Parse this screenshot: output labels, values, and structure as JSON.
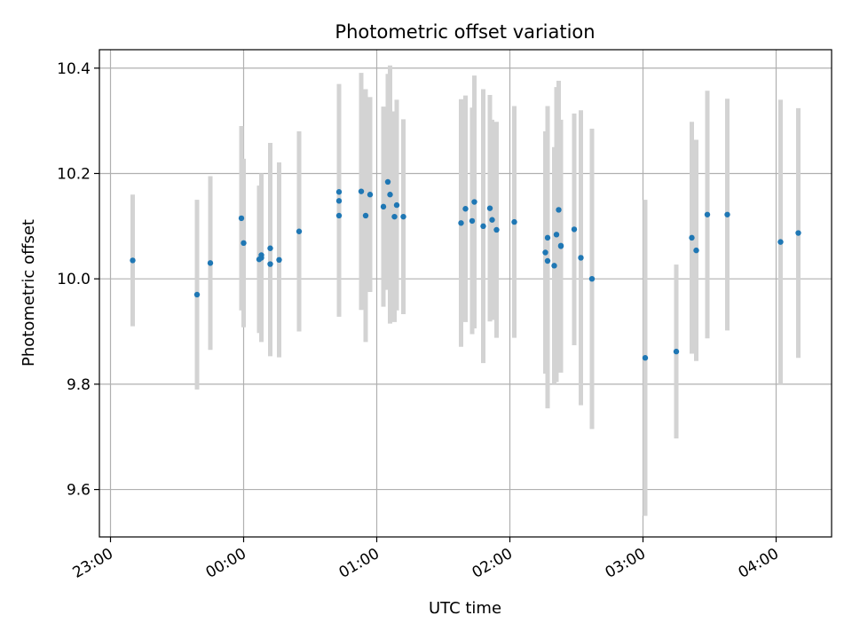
{
  "chart_data": {
    "type": "scatter",
    "title": "Photometric offset variation",
    "xlabel": "UTC time",
    "ylabel": "Photometric offset",
    "x_unit": "time",
    "x_ticks": [
      "23:00",
      "00:00",
      "01:00",
      "02:00",
      "03:00",
      "04:00"
    ],
    "y_ticks": [
      "9.6",
      "9.8",
      "10.0",
      "10.2",
      "10.4"
    ],
    "xlim": [
      "22:55",
      "04:25"
    ],
    "ylim": [
      9.51,
      10.435
    ],
    "grid": true,
    "colors": {
      "points": "#1f77b4",
      "error_bars": "#d3d3d3",
      "grid": "#b0b0b0"
    },
    "series": [
      {
        "x": [
          "23:10",
          "23:39",
          "23:45",
          "23:59",
          "24:00",
          "24:07",
          "24:08",
          "24:08",
          "24:12",
          "24:12",
          "24:16",
          "24:25",
          "24:43",
          "24:43",
          "24:43",
          "24:53",
          "24:55",
          "24:57",
          "25:03",
          "25:05",
          "25:06",
          "25:08",
          "25:09",
          "25:12",
          "25:38",
          "25:40",
          "25:43",
          "25:44",
          "25:48",
          "25:51",
          "25:52",
          "25:54",
          "26:02",
          "26:16",
          "26:17",
          "26:17",
          "26:20",
          "26:21",
          "26:22",
          "26:23",
          "26:23",
          "26:29",
          "26:32",
          "26:37",
          "27:01",
          "27:15",
          "27:22",
          "27:24",
          "27:29",
          "27:38",
          "28:02",
          "28:10"
        ],
        "y": [
          10.035,
          9.97,
          10.03,
          10.115,
          10.068,
          10.037,
          10.04,
          10.045,
          10.028,
          10.058,
          10.036,
          10.09,
          10.165,
          10.148,
          10.12,
          10.166,
          10.12,
          10.16,
          10.137,
          10.184,
          10.16,
          10.118,
          10.14,
          10.118,
          10.106,
          10.133,
          10.11,
          10.146,
          10.1,
          10.134,
          10.112,
          10.093,
          10.108,
          10.05,
          10.078,
          10.034,
          10.025,
          10.084,
          10.131,
          10.062,
          10.063,
          10.094,
          10.04,
          10.0,
          9.85,
          9.862,
          10.078,
          10.054,
          10.122,
          10.122,
          10.07,
          10.087
        ],
        "error": [
          0.125,
          0.18,
          0.165,
          0.175,
          0.16,
          0.14,
          0.16,
          0.14,
          0.175,
          0.2,
          0.185,
          0.19,
          0.205,
          0.22,
          0.19,
          0.225,
          0.24,
          0.185,
          0.19,
          0.205,
          0.245,
          0.2,
          0.2,
          0.185,
          0.235,
          0.215,
          0.215,
          0.24,
          0.26,
          0.215,
          0.19,
          0.205,
          0.22,
          0.23,
          0.25,
          0.28,
          0.225,
          0.28,
          0.245,
          0.24,
          0.215,
          0.22,
          0.28,
          0.285,
          0.3,
          0.165,
          0.22,
          0.21,
          0.235,
          0.22,
          0.27,
          0.237
        ]
      }
    ]
  }
}
